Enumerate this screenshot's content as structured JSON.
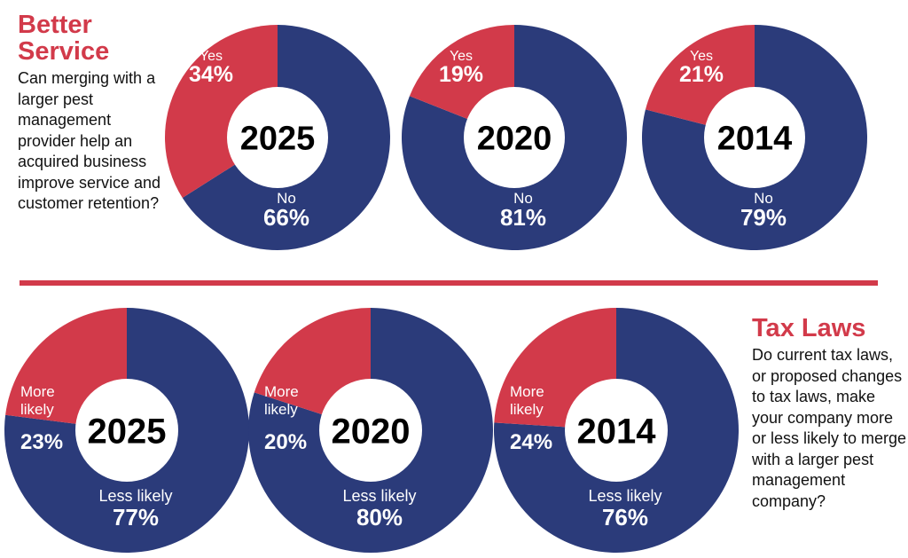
{
  "colors": {
    "accent": "#d23a4a",
    "primary_slice": "#d23a4a",
    "secondary_slice": "#2b3b7a",
    "center": "#ffffff"
  },
  "top_section": {
    "title_line1": "Better",
    "title_line2": "Service",
    "question": "Can merging with a larger pest management provider help an acquired business improve service and customer retention?"
  },
  "bottom_section": {
    "title": "Tax Laws",
    "question": "Do current tax laws, or proposed changes to tax laws, make your company more or less likely to merge with a larger pest management company?"
  },
  "chart_data": [
    {
      "type": "pie",
      "title": "2025",
      "categories": [
        "Yes",
        "No"
      ],
      "values": [
        34,
        66
      ],
      "unit": "%"
    },
    {
      "type": "pie",
      "title": "2020",
      "categories": [
        "Yes",
        "No"
      ],
      "values": [
        19,
        81
      ],
      "unit": "%"
    },
    {
      "type": "pie",
      "title": "2014",
      "categories": [
        "Yes",
        "No"
      ],
      "values": [
        21,
        79
      ],
      "unit": "%"
    },
    {
      "type": "pie",
      "title": "2025",
      "categories": [
        "More likely",
        "Less likely"
      ],
      "values": [
        23,
        77
      ],
      "unit": "%"
    },
    {
      "type": "pie",
      "title": "2020",
      "categories": [
        "More likely",
        "Less likely"
      ],
      "values": [
        20,
        80
      ],
      "unit": "%"
    },
    {
      "type": "pie",
      "title": "2014",
      "categories": [
        "More likely",
        "Less likely"
      ],
      "values": [
        24,
        76
      ],
      "unit": "%"
    }
  ]
}
